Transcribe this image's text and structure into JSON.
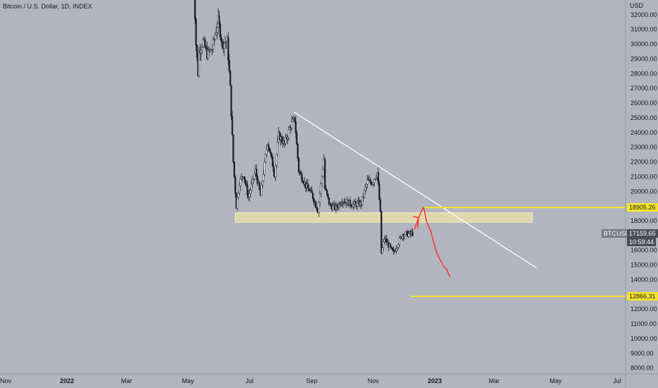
{
  "header": {
    "symbol_title": "Bitcoin / U.S. Dollar, 1D, INDEX",
    "currency": "USD"
  },
  "price_badges": {
    "resistance": "18905.26",
    "support": "12866.31",
    "ticker": "BTCUSD",
    "last_price": "17159.65",
    "countdown": "10:59:44"
  },
  "colors": {
    "background": "#b2b5be",
    "candle": "#1e222d",
    "trendline": "#ffffff",
    "level_line": "#f5e52a",
    "zone_fill": "#dfd8ad",
    "projection": "#ff2a2a",
    "ticker_badge": "#787b86",
    "price_badge": "#4a4d57"
  },
  "chart_data": {
    "type": "candlestick",
    "y_axis": {
      "min": 7600,
      "max": 33000,
      "ticks": [
        32000,
        31000,
        30000,
        29000,
        28000,
        27000,
        26000,
        25000,
        24000,
        23000,
        22000,
        21000,
        20000,
        19000,
        18000,
        17000,
        16000,
        15000,
        14000,
        13000,
        12000,
        11000,
        10000,
        9000,
        8000
      ],
      "tick_labels": [
        "32000.00",
        "31000.00",
        "30000.00",
        "29000.00",
        "28000.00",
        "27000.00",
        "26000.00",
        "25000.00",
        "24000.00",
        "23000.00",
        "22000.00",
        "21000.00",
        "20000.00",
        "19000.00",
        "18000.00",
        "17000.00",
        "16000.00",
        "15000.00",
        "14000.00",
        "13000.00",
        "12000.00",
        "11000.00",
        "10000.00",
        "9000.00",
        "8000.00"
      ]
    },
    "x_axis": {
      "start": "2021-11-01",
      "end": "2023-07-15",
      "tick_dates": [
        "2021-11-01",
        "2022-01-01",
        "2022-03-01",
        "2022-05-01",
        "2022-07-01",
        "2022-09-01",
        "2022-11-01",
        "2023-01-01",
        "2023-03-01",
        "2023-05-01",
        "2023-07-01"
      ],
      "tick_labels": [
        "Nov",
        "2022",
        "Mar",
        "May",
        "Jul",
        "Sep",
        "Nov",
        "2023",
        "Mar",
        "May",
        "Jul"
      ]
    },
    "price_path": [
      [
        "2022-05-06",
        36000
      ],
      [
        "2022-05-09",
        30000
      ],
      [
        "2022-05-11",
        28000
      ],
      [
        "2022-05-12",
        29500
      ],
      [
        "2022-05-16",
        30200
      ],
      [
        "2022-05-20",
        29300
      ],
      [
        "2022-05-25",
        29700
      ],
      [
        "2022-05-31",
        31600
      ],
      [
        "2022-06-04",
        30000
      ],
      [
        "2022-06-09",
        30200
      ],
      [
        "2022-06-12",
        27000
      ],
      [
        "2022-06-15",
        22000
      ],
      [
        "2022-06-18",
        19000
      ],
      [
        "2022-06-21",
        20600
      ],
      [
        "2022-06-25",
        21200
      ],
      [
        "2022-06-30",
        19600
      ],
      [
        "2022-07-07",
        21400
      ],
      [
        "2022-07-12",
        19700
      ],
      [
        "2022-07-19",
        23400
      ],
      [
        "2022-07-26",
        21200
      ],
      [
        "2022-07-30",
        23800
      ],
      [
        "2022-08-05",
        23200
      ],
      [
        "2022-08-11",
        24500
      ],
      [
        "2022-08-15",
        24900
      ],
      [
        "2022-08-19",
        21400
      ],
      [
        "2022-08-26",
        20400
      ],
      [
        "2022-09-01",
        19800
      ],
      [
        "2022-09-07",
        18700
      ],
      [
        "2022-09-13",
        22200
      ],
      [
        "2022-09-14",
        20200
      ],
      [
        "2022-09-19",
        19000
      ],
      [
        "2022-09-25",
        18900
      ],
      [
        "2022-10-01",
        19400
      ],
      [
        "2022-10-12",
        19100
      ],
      [
        "2022-10-20",
        19200
      ],
      [
        "2022-10-26",
        20700
      ],
      [
        "2022-10-31",
        20600
      ],
      [
        "2022-11-05",
        21300
      ],
      [
        "2022-11-08",
        18500
      ],
      [
        "2022-11-09",
        15800
      ],
      [
        "2022-11-12",
        16800
      ],
      [
        "2022-11-21",
        15800
      ],
      [
        "2022-11-30",
        17100
      ],
      [
        "2022-12-06",
        17100
      ],
      [
        "2022-12-10",
        17150
      ]
    ],
    "trendline": [
      [
        "2022-08-14",
        25400
      ],
      [
        "2023-04-12",
        14800
      ]
    ],
    "zone": {
      "from": "2022-06-17",
      "to": "2023-04-08",
      "low": 17900,
      "high": 18550
    },
    "levels": [
      {
        "value": 18905.26,
        "from": "2022-12-21"
      },
      {
        "value": 12866.31,
        "from": "2022-12-08"
      }
    ],
    "projection": [
      [
        "2022-12-12",
        17450
      ],
      [
        "2022-12-16",
        18200
      ],
      [
        "2022-12-19",
        18700
      ],
      [
        "2022-12-21",
        18900
      ],
      [
        "2022-12-24",
        17900
      ],
      [
        "2022-12-28",
        17300
      ],
      [
        "2023-01-02",
        16000
      ],
      [
        "2023-01-06",
        15400
      ],
      [
        "2023-01-10",
        14900
      ],
      [
        "2023-01-13",
        14700
      ],
      [
        "2023-01-16",
        14200
      ]
    ],
    "projection_arrowhead": [
      [
        "2022-12-11",
        18300
      ],
      [
        "2022-12-16",
        18200
      ],
      [
        "2022-12-15",
        17500
      ]
    ],
    "last_price": 17159.65
  }
}
